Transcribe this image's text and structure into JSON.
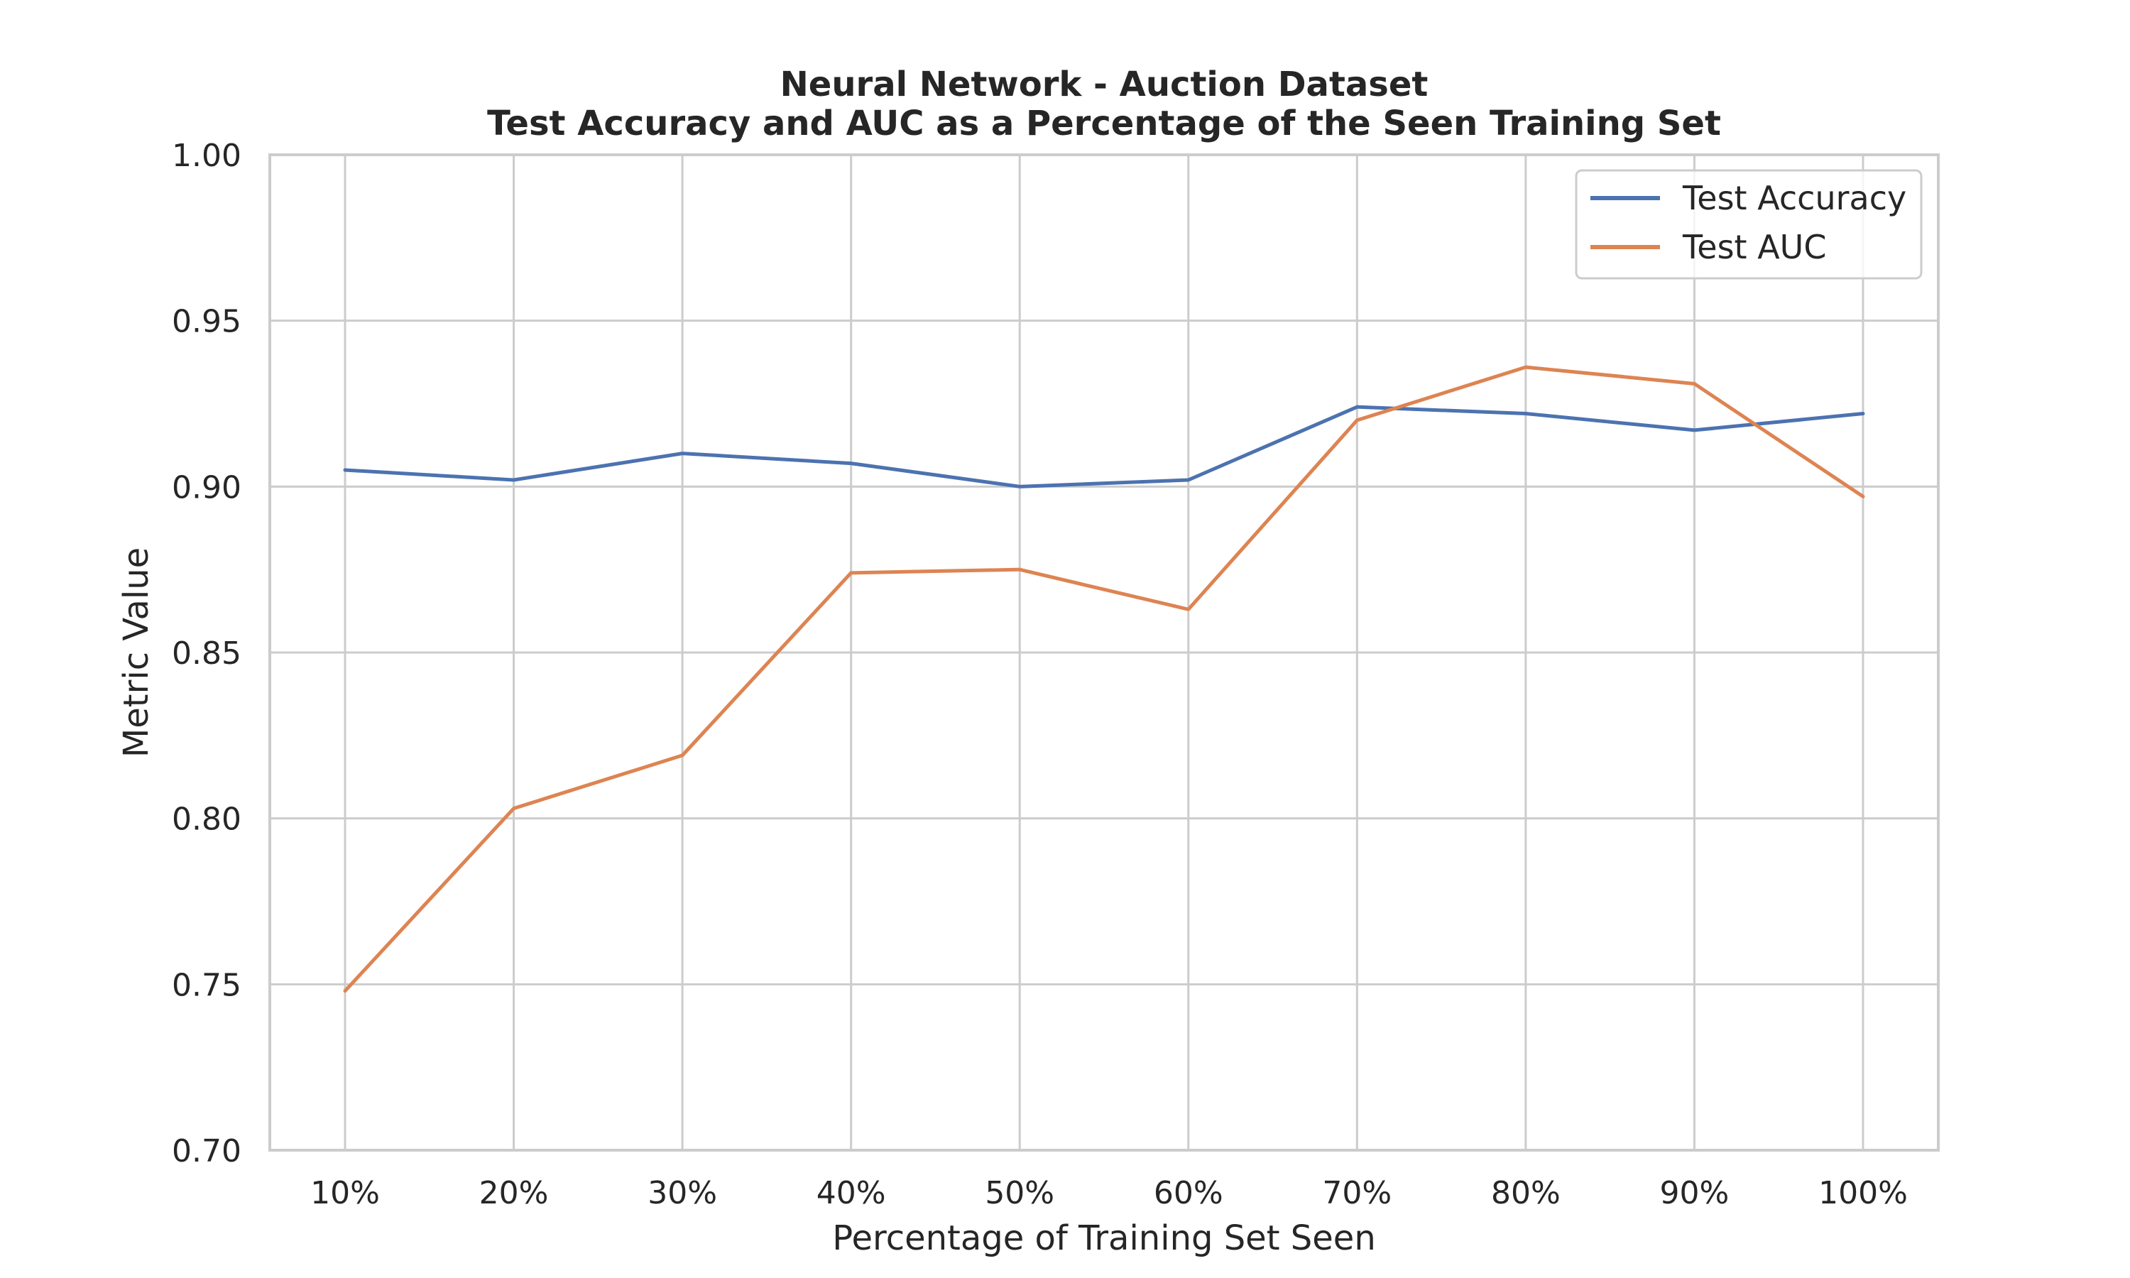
{
  "chart_data": {
    "type": "line",
    "title": "Neural Network - Auction Dataset",
    "subtitle": "Test Accuracy and AUC as a Percentage of the Seen Training Set",
    "xlabel": "Percentage of Training Set Seen",
    "ylabel": "Metric Value",
    "categories": [
      "10%",
      "20%",
      "30%",
      "40%",
      "50%",
      "60%",
      "70%",
      "80%",
      "90%",
      "100%"
    ],
    "ylim": [
      0.7,
      1.0
    ],
    "yticks": [
      "0.70",
      "0.75",
      "0.80",
      "0.85",
      "0.90",
      "0.95",
      "1.00"
    ],
    "grid": true,
    "legend_position": "top-right",
    "series": [
      {
        "name": "Test Accuracy",
        "color": "#4c72b0",
        "values": [
          0.905,
          0.902,
          0.91,
          0.907,
          0.9,
          0.902,
          0.924,
          0.922,
          0.917,
          0.922
        ]
      },
      {
        "name": "Test AUC",
        "color": "#dd8452",
        "values": [
          0.748,
          0.803,
          0.819,
          0.874,
          0.875,
          0.863,
          0.92,
          0.936,
          0.931,
          0.897
        ]
      }
    ]
  }
}
